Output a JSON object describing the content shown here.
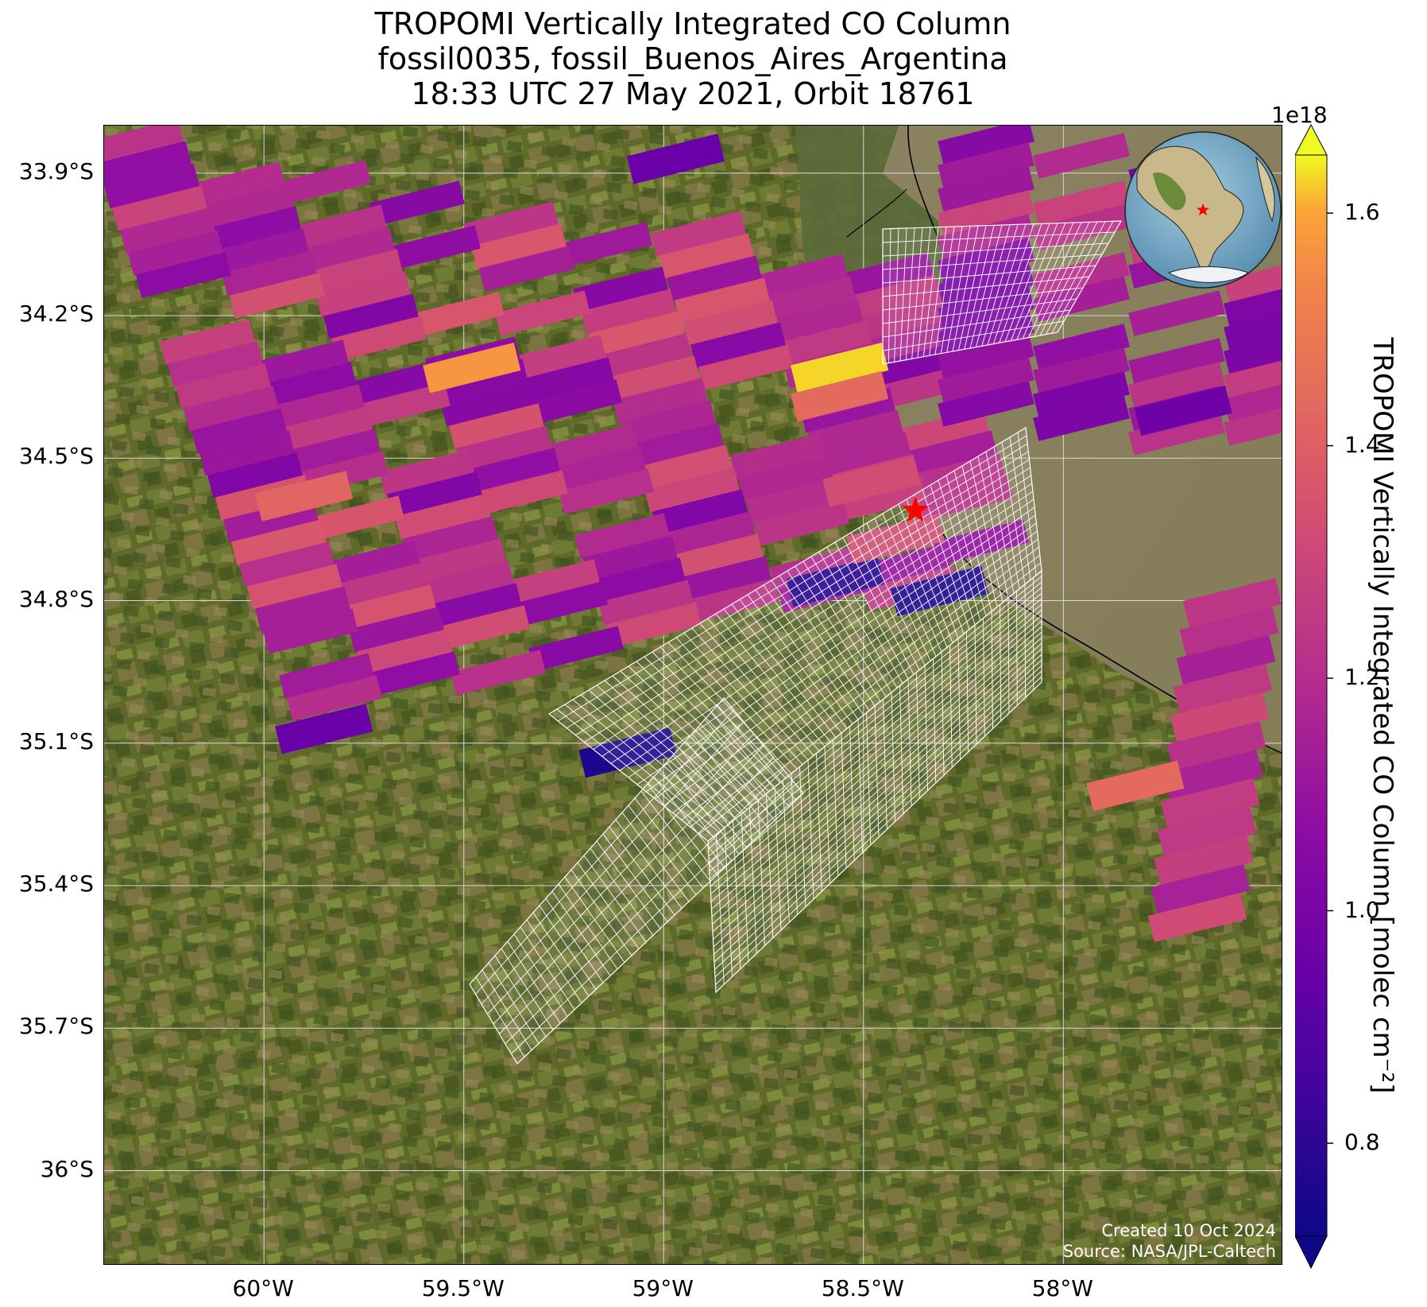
{
  "title": {
    "line1": "TROPOMI Vertically Integrated CO Column",
    "line2": "fossil0035, fossil_Buenos_Aires_Argentina",
    "line3": "18:33 UTC 27 May 2021, Orbit 18761"
  },
  "map": {
    "lon_range": [
      -60.4,
      -57.45
    ],
    "lat_range": [
      -36.2,
      -33.8
    ],
    "lat_ticks": [
      "33.9°S",
      "34.2°S",
      "34.5°S",
      "34.8°S",
      "35.1°S",
      "35.4°S",
      "35.7°S",
      "36°S"
    ],
    "lat_values": [
      -33.9,
      -34.2,
      -34.5,
      -34.8,
      -35.1,
      -35.4,
      -35.7,
      -36.0
    ],
    "lon_ticks": [
      "60°W",
      "59.5°W",
      "59°W",
      "58.5°W",
      "58°W"
    ],
    "lon_values": [
      -60.0,
      -59.5,
      -59.0,
      -58.5,
      -58.0
    ],
    "gridlines": true,
    "site_marker": {
      "lon": -58.37,
      "lat": -34.61,
      "symbol": "star",
      "color": "#ff0000"
    },
    "background": "satellite imagery",
    "inset": "globe centered on South America with red star marker"
  },
  "colorbar": {
    "label": "TROPOMI Vertically Integrated CO Column [molec cm⁻²]",
    "exponent": "1e18",
    "range": [
      0.72,
      1.65
    ],
    "ticks": [
      "0.8",
      "1.0",
      "1.2",
      "1.4",
      "1.6"
    ],
    "tick_values": [
      0.8,
      1.0,
      1.2,
      1.4,
      1.6
    ],
    "colormap": "plasma",
    "extend": "both"
  },
  "credits": {
    "created": "Created 10 Oct 2024",
    "source": "Source: NASA/JPL-Caltech"
  },
  "chart_data": {
    "type": "heatmap",
    "units": "molec cm-2 (x1e18)",
    "sample_pixels": [
      {
        "lon": -59.48,
        "lat": -34.31,
        "value": 1.57
      },
      {
        "lon": -58.56,
        "lat": -34.31,
        "value": 1.63
      },
      {
        "lon": -58.56,
        "lat": -34.37,
        "value": 1.44
      },
      {
        "lon": -59.9,
        "lat": -34.58,
        "value": 1.42
      },
      {
        "lon": -58.57,
        "lat": -34.76,
        "value": 0.78
      },
      {
        "lon": -58.31,
        "lat": -34.78,
        "value": 0.76
      },
      {
        "lon": -59.09,
        "lat": -35.12,
        "value": 0.76
      },
      {
        "lon": -57.82,
        "lat": -35.19,
        "value": 1.44
      },
      {
        "lon": -59.85,
        "lat": -35.07,
        "value": 0.95
      },
      {
        "lon": -58.97,
        "lat": -33.87,
        "value": 0.95
      },
      {
        "lon": -57.7,
        "lat": -34.4,
        "value": 0.97
      },
      {
        "lon": -58.42,
        "lat": -34.67,
        "value": 1.33
      },
      {
        "lon": -58.48,
        "lat": -34.55,
        "value": 1.33
      }
    ]
  }
}
